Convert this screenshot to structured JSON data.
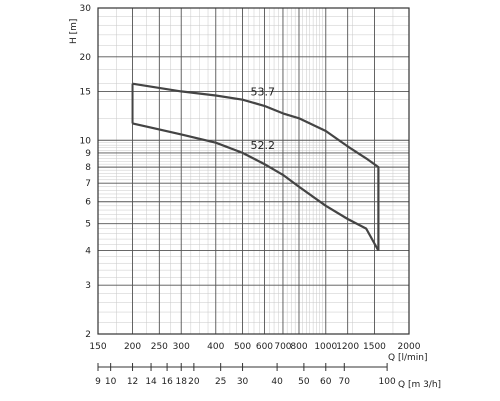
{
  "chart_data": {
    "type": "line",
    "title": "",
    "scale": {
      "x": "log",
      "y": "log"
    },
    "grid": true,
    "xlabel": "Q [l/min]",
    "ylabel": "H [m]",
    "xlim": [
      150,
      2000
    ],
    "ylim": [
      2,
      30
    ],
    "x_ticks": [
      150,
      200,
      250,
      300,
      400,
      500,
      600,
      700,
      800,
      1000,
      1200,
      1500,
      2000
    ],
    "y_ticks": [
      2,
      3,
      4,
      5,
      6,
      7,
      8,
      9,
      10,
      15,
      20,
      30
    ],
    "secondary_x": {
      "label": "Q [m 3/h]",
      "ticks": [
        9,
        10,
        12,
        14,
        16,
        18,
        20,
        25,
        30,
        40,
        50,
        60,
        70,
        100
      ],
      "unit_factor_lpm_per_m3h": 16.6667
    },
    "series": [
      {
        "name": "53.7",
        "x": [
          200,
          300,
          400,
          500,
          600,
          700,
          800,
          1000,
          1200,
          1400,
          1550,
          1550
        ],
        "y": [
          16.0,
          15.0,
          14.5,
          14.0,
          13.3,
          12.5,
          12.0,
          10.8,
          9.5,
          8.6,
          8.0,
          4.0
        ]
      },
      {
        "name": "52.2",
        "x": [
          200,
          300,
          400,
          500,
          600,
          700,
          800,
          1000,
          1200,
          1400,
          1550
        ],
        "y": [
          11.5,
          10.5,
          9.8,
          9.0,
          8.2,
          7.5,
          6.8,
          5.8,
          5.2,
          4.8,
          4.0
        ]
      }
    ],
    "envelope": {
      "x": [
        200,
        200
      ],
      "y": [
        11.5,
        16.0
      ]
    }
  }
}
